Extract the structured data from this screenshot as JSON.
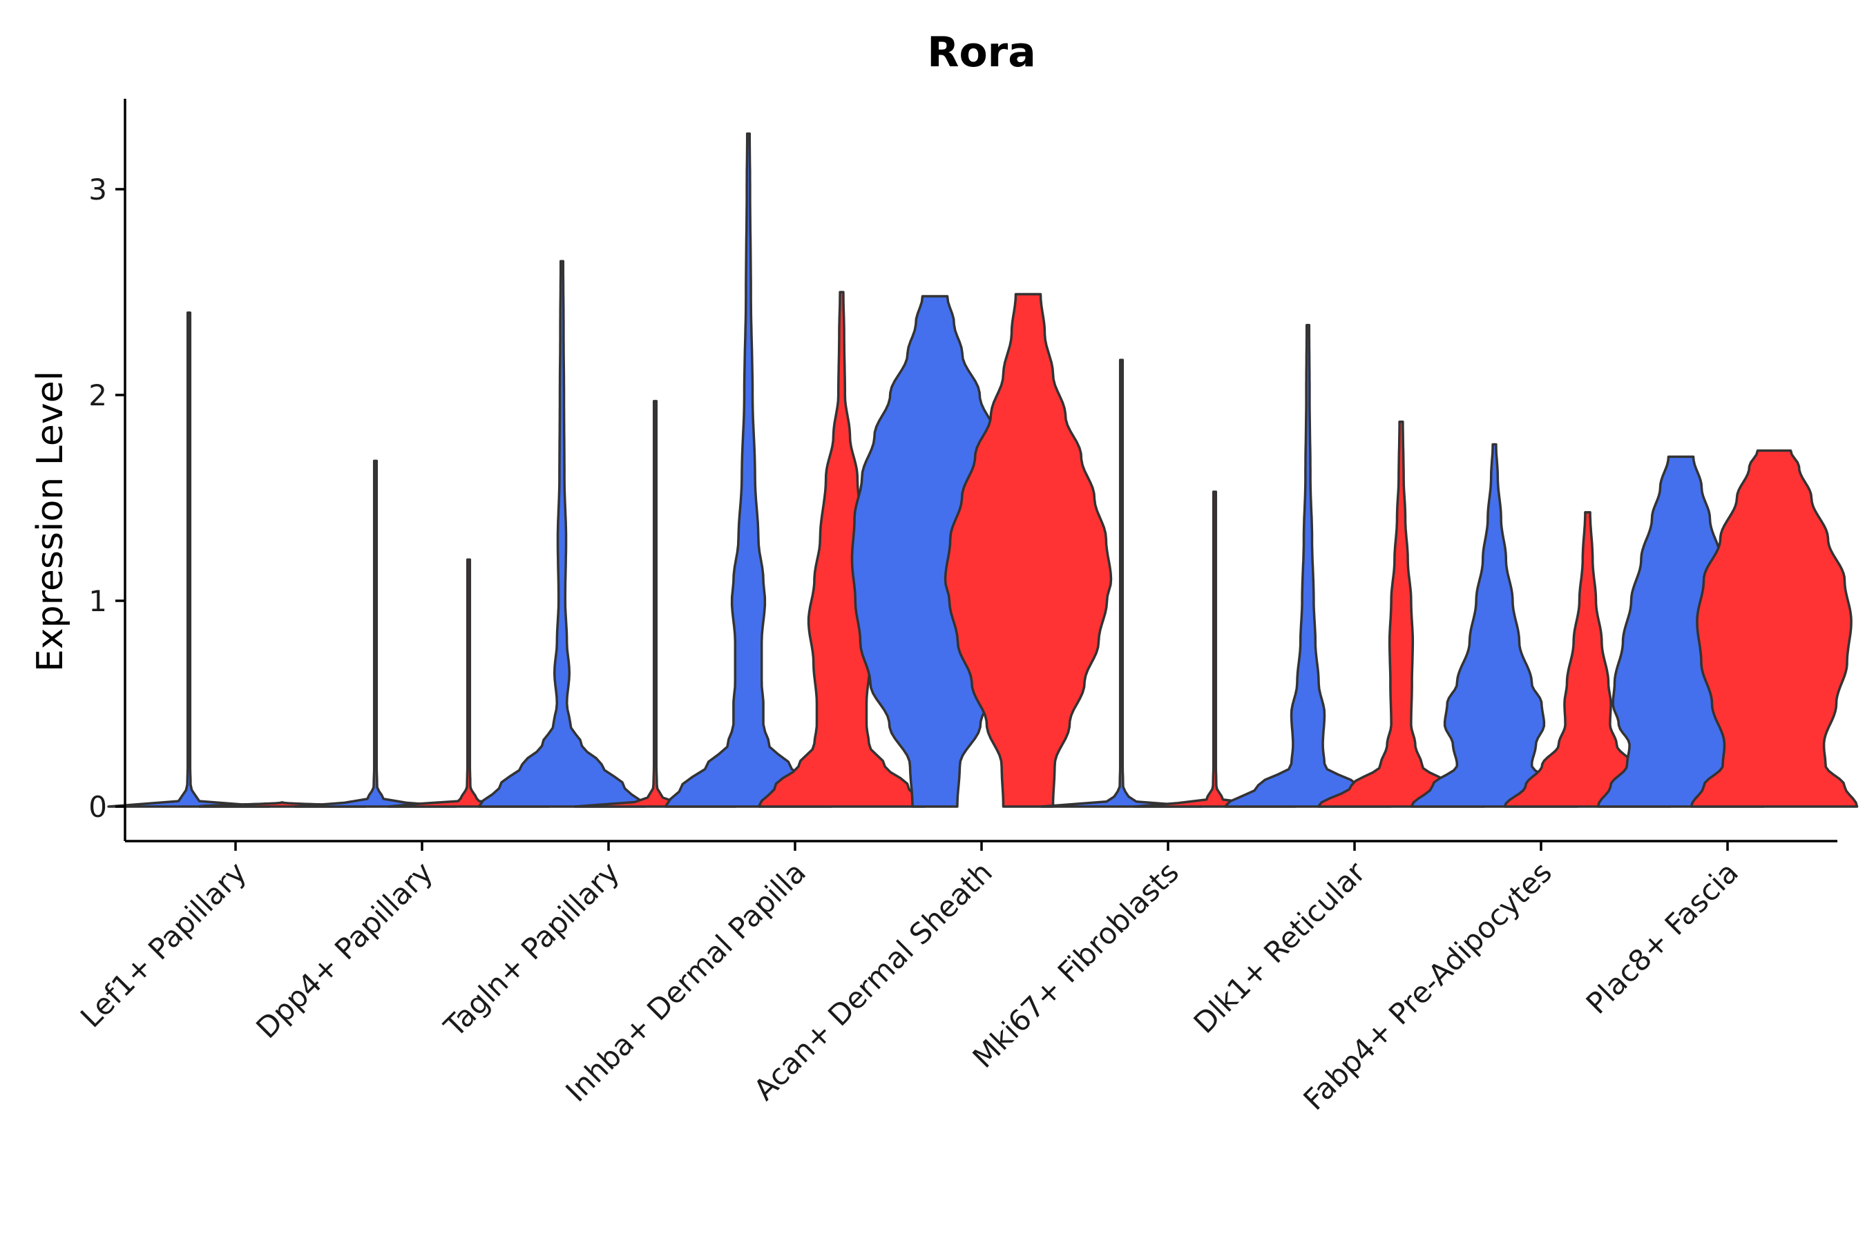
{
  "chart_data": {
    "type": "violin",
    "title": "Rora",
    "xlabel": "",
    "ylabel": "Expression Level",
    "ylim": [
      -0.17,
      3.45
    ],
    "yticks": [
      0,
      1,
      2,
      3
    ],
    "series_colors": {
      "group1": "#4470ED",
      "group2": "#FF3333"
    },
    "categories": [
      "Lef1+ Papillary",
      "Dpp4+ Papillary",
      "Tagln+ Papillary",
      "Inhba+ Dermal Papilla",
      "Acan+ Dermal Sheath",
      "Mki67+ Fibroblasts",
      "Dlk1+ Reticular",
      "Fabp4+ Pre-Adipocytes",
      "Plac8+ Fascia"
    ],
    "groups": [
      {
        "category": "Lef1+ Papillary",
        "series": "group1",
        "max": 2.4,
        "profile": [
          [
            0,
            0.97
          ],
          [
            0.03,
            0.1
          ],
          [
            0.1,
            0.02
          ],
          [
            0.2,
            0.015
          ],
          [
            2.4,
            0.015
          ]
        ]
      },
      {
        "category": "Lef1+ Papillary",
        "series": "group2",
        "max": 0.02,
        "profile": [
          [
            0,
            1
          ],
          [
            0.02,
            0
          ]
        ]
      },
      {
        "category": "Dpp4+ Papillary",
        "series": "group1",
        "max": 1.68,
        "profile": [
          [
            0,
            0.97
          ],
          [
            0.03,
            0.1
          ],
          [
            0.1,
            0.02
          ],
          [
            0.2,
            0.015
          ],
          [
            1.68,
            0.015
          ]
        ]
      },
      {
        "category": "Dpp4+ Papillary",
        "series": "group2",
        "max": 1.2,
        "profile": [
          [
            0,
            0.97
          ],
          [
            0.03,
            0.1
          ],
          [
            0.1,
            0.02
          ],
          [
            0.2,
            0.015
          ],
          [
            1.2,
            0.015
          ]
        ]
      },
      {
        "category": "Tagln+ Papillary",
        "series": "group1",
        "max": 2.65,
        "profile": [
          [
            0,
            1
          ],
          [
            0.1,
            0.75
          ],
          [
            0.2,
            0.48
          ],
          [
            0.3,
            0.24
          ],
          [
            0.4,
            0.1
          ],
          [
            0.5,
            0.06
          ],
          [
            0.65,
            0.09
          ],
          [
            0.8,
            0.06
          ],
          [
            1.0,
            0.04
          ],
          [
            1.3,
            0.05
          ],
          [
            1.6,
            0.03
          ],
          [
            2.0,
            0.025
          ],
          [
            2.3,
            0.02
          ],
          [
            2.65,
            0.015
          ]
        ]
      },
      {
        "category": "Tagln+ Papillary",
        "series": "group2",
        "max": 1.97,
        "profile": [
          [
            0,
            0.97
          ],
          [
            0.03,
            0.1
          ],
          [
            0.1,
            0.02
          ],
          [
            0.2,
            0.015
          ],
          [
            1.97,
            0.015
          ]
        ]
      },
      {
        "category": "Inhba+ Dermal Papilla",
        "series": "group1",
        "max": 3.27,
        "profile": [
          [
            0,
            1
          ],
          [
            0.1,
            0.8
          ],
          [
            0.2,
            0.5
          ],
          [
            0.3,
            0.25
          ],
          [
            0.4,
            0.18
          ],
          [
            0.5,
            0.18
          ],
          [
            0.6,
            0.16
          ],
          [
            0.8,
            0.16
          ],
          [
            1.0,
            0.2
          ],
          [
            1.1,
            0.18
          ],
          [
            1.3,
            0.12
          ],
          [
            1.6,
            0.08
          ],
          [
            2.0,
            0.05
          ],
          [
            2.5,
            0.03
          ],
          [
            3.0,
            0.02
          ],
          [
            3.27,
            0.015
          ]
        ]
      },
      {
        "category": "Inhba+ Dermal Papilla",
        "series": "group2",
        "max": 2.5,
        "profile": [
          [
            0,
            1
          ],
          [
            0.1,
            0.8
          ],
          [
            0.2,
            0.52
          ],
          [
            0.3,
            0.33
          ],
          [
            0.4,
            0.3
          ],
          [
            0.5,
            0.3
          ],
          [
            0.7,
            0.34
          ],
          [
            0.9,
            0.4
          ],
          [
            1.1,
            0.33
          ],
          [
            1.3,
            0.26
          ],
          [
            1.6,
            0.19
          ],
          [
            1.8,
            0.1
          ],
          [
            2.0,
            0.04
          ],
          [
            2.3,
            0.03
          ],
          [
            2.5,
            0.02
          ]
        ]
      },
      {
        "category": "Acan+ Dermal Sheath",
        "series": "group1",
        "max": 2.48,
        "profile": [
          [
            0,
            0.27
          ],
          [
            0.2,
            0.3
          ],
          [
            0.4,
            0.55
          ],
          [
            0.6,
            0.78
          ],
          [
            0.8,
            0.9
          ],
          [
            1.0,
            0.96
          ],
          [
            1.2,
            1.0
          ],
          [
            1.4,
            0.97
          ],
          [
            1.6,
            0.88
          ],
          [
            1.8,
            0.73
          ],
          [
            2.0,
            0.54
          ],
          [
            2.2,
            0.33
          ],
          [
            2.35,
            0.23
          ],
          [
            2.48,
            0.15
          ]
        ]
      },
      {
        "category": "Acan+ Dermal Sheath",
        "series": "group2",
        "max": 2.49,
        "profile": [
          [
            0,
            0.3
          ],
          [
            0.2,
            0.32
          ],
          [
            0.4,
            0.5
          ],
          [
            0.6,
            0.68
          ],
          [
            0.8,
            0.85
          ],
          [
            1.0,
            0.95
          ],
          [
            1.1,
            1.0
          ],
          [
            1.3,
            0.94
          ],
          [
            1.5,
            0.8
          ],
          [
            1.7,
            0.64
          ],
          [
            1.9,
            0.45
          ],
          [
            2.1,
            0.3
          ],
          [
            2.3,
            0.2
          ],
          [
            2.49,
            0.15
          ]
        ]
      },
      {
        "category": "Mki67+ Fibroblasts",
        "series": "group1",
        "max": 2.17,
        "profile": [
          [
            0,
            0.97
          ],
          [
            0.03,
            0.1
          ],
          [
            0.1,
            0.02
          ],
          [
            0.2,
            0.015
          ],
          [
            2.17,
            0.015
          ]
        ]
      },
      {
        "category": "Mki67+ Fibroblasts",
        "series": "group2",
        "max": 1.53,
        "profile": [
          [
            0,
            0.97
          ],
          [
            0.03,
            0.1
          ],
          [
            0.1,
            0.02
          ],
          [
            0.2,
            0.015
          ],
          [
            1.53,
            0.015
          ]
        ]
      },
      {
        "category": "Dlk1+ Reticular",
        "series": "group1",
        "max": 2.34,
        "profile": [
          [
            0,
            1
          ],
          [
            0.1,
            0.6
          ],
          [
            0.2,
            0.2
          ],
          [
            0.3,
            0.18
          ],
          [
            0.45,
            0.2
          ],
          [
            0.6,
            0.13
          ],
          [
            0.8,
            0.09
          ],
          [
            1.0,
            0.07
          ],
          [
            1.3,
            0.05
          ],
          [
            1.6,
            0.03
          ],
          [
            2.0,
            0.02
          ],
          [
            2.34,
            0.015
          ]
        ]
      },
      {
        "category": "Dlk1+ Reticular",
        "series": "group2",
        "max": 1.87,
        "profile": [
          [
            0,
            1
          ],
          [
            0.1,
            0.6
          ],
          [
            0.2,
            0.25
          ],
          [
            0.3,
            0.17
          ],
          [
            0.4,
            0.12
          ],
          [
            0.6,
            0.13
          ],
          [
            0.8,
            0.14
          ],
          [
            1.0,
            0.12
          ],
          [
            1.2,
            0.08
          ],
          [
            1.4,
            0.05
          ],
          [
            1.6,
            0.03
          ],
          [
            1.87,
            0.02
          ]
        ]
      },
      {
        "category": "Fabp4+ Pre-Adipocytes",
        "series": "group1",
        "max": 1.76,
        "profile": [
          [
            0,
            1
          ],
          [
            0.1,
            0.75
          ],
          [
            0.2,
            0.45
          ],
          [
            0.3,
            0.5
          ],
          [
            0.4,
            0.6
          ],
          [
            0.5,
            0.57
          ],
          [
            0.6,
            0.45
          ],
          [
            0.8,
            0.3
          ],
          [
            1.0,
            0.22
          ],
          [
            1.2,
            0.14
          ],
          [
            1.4,
            0.08
          ],
          [
            1.6,
            0.04
          ],
          [
            1.76,
            0.02
          ]
        ]
      },
      {
        "category": "Fabp4+ Pre-Adipocytes",
        "series": "group2",
        "max": 1.43,
        "profile": [
          [
            0,
            1
          ],
          [
            0.1,
            0.75
          ],
          [
            0.2,
            0.55
          ],
          [
            0.3,
            0.35
          ],
          [
            0.4,
            0.27
          ],
          [
            0.5,
            0.28
          ],
          [
            0.6,
            0.25
          ],
          [
            0.8,
            0.17
          ],
          [
            1.0,
            0.1
          ],
          [
            1.2,
            0.06
          ],
          [
            1.43,
            0.03
          ]
        ]
      },
      {
        "category": "Plac8+ Fascia",
        "series": "group1",
        "max": 1.7,
        "profile": [
          [
            0,
            1
          ],
          [
            0.1,
            0.85
          ],
          [
            0.2,
            0.65
          ],
          [
            0.3,
            0.62
          ],
          [
            0.4,
            0.75
          ],
          [
            0.5,
            0.82
          ],
          [
            0.6,
            0.8
          ],
          [
            0.8,
            0.7
          ],
          [
            1.0,
            0.6
          ],
          [
            1.2,
            0.48
          ],
          [
            1.4,
            0.35
          ],
          [
            1.55,
            0.25
          ],
          [
            1.7,
            0.15
          ]
        ]
      },
      {
        "category": "Plac8+ Fascia",
        "series": "group2",
        "max": 1.73,
        "profile": [
          [
            0,
            1
          ],
          [
            0.1,
            0.85
          ],
          [
            0.2,
            0.62
          ],
          [
            0.3,
            0.6
          ],
          [
            0.5,
            0.75
          ],
          [
            0.7,
            0.88
          ],
          [
            0.9,
            0.93
          ],
          [
            1.1,
            0.85
          ],
          [
            1.3,
            0.65
          ],
          [
            1.5,
            0.45
          ],
          [
            1.65,
            0.3
          ],
          [
            1.73,
            0.2
          ]
        ]
      }
    ]
  }
}
